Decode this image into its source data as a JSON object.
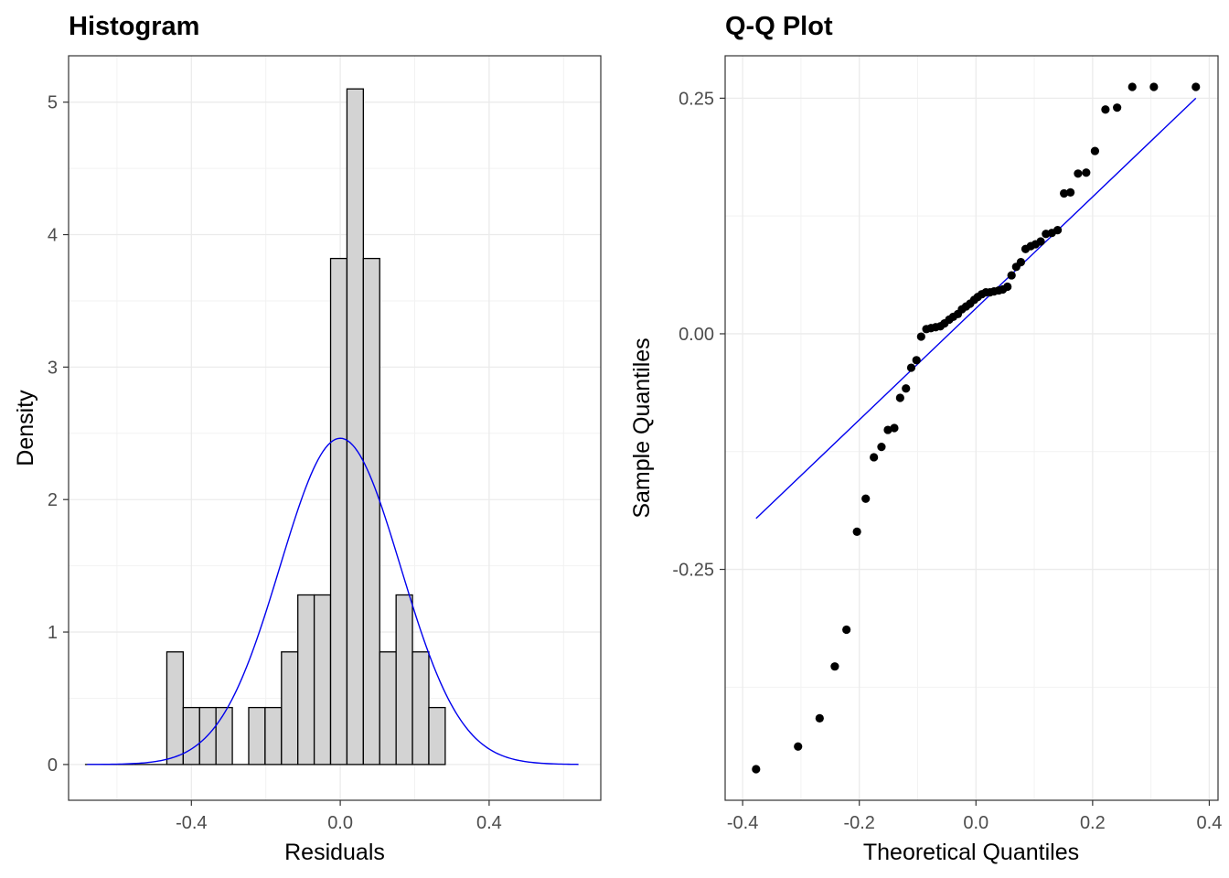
{
  "chart_data": [
    {
      "type": "bar",
      "title": "Histogram",
      "xlabel": "Residuals",
      "ylabel": "Density",
      "xlim": [
        -0.73,
        0.7
      ],
      "ylim": [
        -0.27,
        5.35
      ],
      "x_ticks": [
        -0.4,
        0.0,
        0.4
      ],
      "x_tick_labels": [
        "-0.4",
        "0.0",
        "0.4"
      ],
      "y_ticks": [
        0,
        1,
        2,
        3,
        4,
        5
      ],
      "y_tick_labels": [
        "0",
        "1",
        "2",
        "3",
        "4",
        "5"
      ],
      "grid": true,
      "bin_width": 0.044,
      "bins": [
        {
          "center": -0.664,
          "density": 0
        },
        {
          "center": -0.62,
          "density": 0
        },
        {
          "center": -0.576,
          "density": 0
        },
        {
          "center": -0.532,
          "density": 0
        },
        {
          "center": -0.488,
          "density": 0
        },
        {
          "center": -0.444,
          "density": 0.85
        },
        {
          "center": -0.4,
          "density": 0.43
        },
        {
          "center": -0.356,
          "density": 0.43
        },
        {
          "center": -0.312,
          "density": 0.43
        },
        {
          "center": -0.268,
          "density": 0
        },
        {
          "center": -0.224,
          "density": 0.43
        },
        {
          "center": -0.18,
          "density": 0.43
        },
        {
          "center": -0.136,
          "density": 0.85
        },
        {
          "center": -0.092,
          "density": 1.28
        },
        {
          "center": -0.048,
          "density": 1.28
        },
        {
          "center": -0.004,
          "density": 3.82
        },
        {
          "center": 0.04,
          "density": 5.1
        },
        {
          "center": 0.084,
          "density": 3.82
        },
        {
          "center": 0.128,
          "density": 0.85
        },
        {
          "center": 0.172,
          "density": 1.28
        },
        {
          "center": 0.216,
          "density": 0.85
        },
        {
          "center": 0.26,
          "density": 0.43
        }
      ],
      "density_curve": {
        "type": "normal",
        "mean": 0.0,
        "sd": 0.162,
        "x_range": [
          -0.68,
          0.64
        ],
        "color": "#0000ee"
      },
      "bar_fill": "#d3d3d3",
      "bar_stroke": "#000000"
    },
    {
      "type": "scatter",
      "title": "Q-Q Plot",
      "xlabel": "Theoretical Quantiles",
      "ylabel": "Sample Quantiles",
      "xlim": [
        -0.43,
        0.415
      ],
      "ylim": [
        -0.495,
        0.295
      ],
      "x_ticks": [
        -0.4,
        -0.2,
        0.0,
        0.2,
        0.4
      ],
      "x_tick_labels": [
        "-0.4",
        "-0.2",
        "0.0",
        "0.2",
        "0.4"
      ],
      "y_ticks": [
        -0.25,
        0.0,
        0.25
      ],
      "y_tick_labels": [
        "-0.25",
        "0.00",
        "0.25"
      ],
      "grid": true,
      "points": {
        "x": [
          -0.377,
          -0.305,
          -0.268,
          -0.242,
          -0.222,
          -0.204,
          -0.189,
          -0.175,
          -0.162,
          -0.151,
          -0.14,
          -0.13,
          -0.12,
          -0.111,
          -0.102,
          -0.094,
          -0.085,
          -0.077,
          -0.069,
          -0.061,
          -0.054,
          -0.046,
          -0.039,
          -0.031,
          -0.024,
          -0.017,
          -0.01,
          -0.003,
          0.003,
          0.01,
          0.017,
          0.024,
          0.031,
          0.039,
          0.046,
          0.054,
          0.061,
          0.069,
          0.077,
          0.085,
          0.094,
          0.102,
          0.111,
          0.12,
          0.13,
          0.14,
          0.151,
          0.162,
          0.175,
          0.189,
          0.204,
          0.222,
          0.242,
          0.268,
          0.305,
          0.377
        ],
        "y": [
          -0.462,
          -0.438,
          -0.408,
          -0.353,
          -0.314,
          -0.21,
          -0.175,
          -0.131,
          -0.12,
          -0.102,
          -0.1,
          -0.068,
          -0.058,
          -0.036,
          -0.028,
          -0.003,
          0.005,
          0.006,
          0.007,
          0.008,
          0.011,
          0.015,
          0.018,
          0.021,
          0.026,
          0.029,
          0.032,
          0.036,
          0.039,
          0.042,
          0.044,
          0.044,
          0.045,
          0.046,
          0.047,
          0.05,
          0.062,
          0.071,
          0.076,
          0.09,
          0.093,
          0.095,
          0.098,
          0.106,
          0.107,
          0.11,
          0.149,
          0.15,
          0.17,
          0.171,
          0.194,
          0.238,
          0.24,
          0.262,
          0.262,
          0.262
        ]
      },
      "reference_line": {
        "x": [
          -0.377,
          0.377
        ],
        "y": [
          -0.196,
          0.25
        ],
        "color": "#0000ee"
      },
      "point_color": "#000000"
    }
  ]
}
